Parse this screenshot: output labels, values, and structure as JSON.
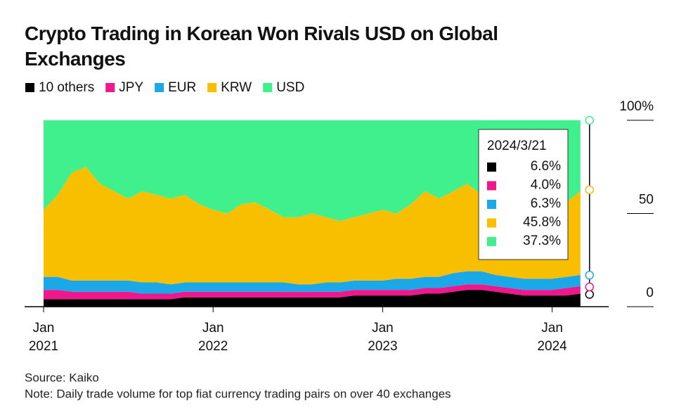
{
  "chart_data": {
    "type": "stacked_area",
    "title": "Crypto Trading in Korean Won Rivals USD on Global Exchanges",
    "source": "Source: Kaiko",
    "note": "Note: Daily trade volume for top fiat currency trading pairs on over 40 exchanges",
    "x": [
      "2021-01",
      "2021-02",
      "2021-03",
      "2021-04",
      "2021-05",
      "2021-06",
      "2021-07",
      "2021-08",
      "2021-09",
      "2021-10",
      "2021-11",
      "2021-12",
      "2022-01",
      "2022-02",
      "2022-03",
      "2022-04",
      "2022-05",
      "2022-06",
      "2022-07",
      "2022-08",
      "2022-09",
      "2022-10",
      "2022-11",
      "2022-12",
      "2023-01",
      "2023-02",
      "2023-03",
      "2023-04",
      "2023-05",
      "2023-06",
      "2023-07",
      "2023-08",
      "2023-09",
      "2023-10",
      "2023-11",
      "2023-12",
      "2024-01",
      "2024-02",
      "2024-03"
    ],
    "series": [
      {
        "name": "10 others",
        "color": "#000000",
        "values": [
          4,
          4,
          4,
          4,
          4,
          4,
          4,
          4,
          4,
          4,
          5,
          5,
          5,
          5,
          5,
          5,
          5,
          5,
          5,
          5,
          5,
          5,
          6,
          6,
          6,
          6,
          6,
          7,
          7,
          8,
          9,
          9,
          8,
          7,
          6,
          6,
          6,
          6,
          7
        ]
      },
      {
        "name": "JPY",
        "color": "#f0168c",
        "values": [
          5,
          5,
          4,
          4,
          4,
          4,
          4,
          3,
          3,
          3,
          3,
          3,
          3,
          3,
          3,
          3,
          3,
          3,
          3,
          3,
          3,
          3,
          3,
          3,
          3,
          3,
          3,
          3,
          3,
          3,
          3,
          3,
          3,
          3,
          3,
          3,
          3,
          4,
          4
        ]
      },
      {
        "name": "EUR",
        "color": "#1ba8e8",
        "values": [
          7,
          7,
          6,
          6,
          6,
          6,
          6,
          6,
          6,
          5,
          5,
          5,
          5,
          5,
          5,
          5,
          5,
          5,
          4,
          4,
          5,
          5,
          5,
          5,
          5,
          6,
          6,
          6,
          6,
          7,
          7,
          7,
          6,
          6,
          6,
          6,
          6,
          6,
          6
        ]
      },
      {
        "name": "KRW",
        "color": "#f8bf00",
        "values": [
          36,
          44,
          58,
          61,
          52,
          48,
          44,
          49,
          47,
          46,
          47,
          42,
          39,
          37,
          42,
          43,
          39,
          35,
          36,
          38,
          35,
          33,
          34,
          36,
          38,
          35,
          40,
          46,
          42,
          44,
          47,
          41,
          45,
          44,
          51,
          49,
          43,
          40,
          45
        ]
      },
      {
        "name": "USD",
        "color": "#40f08c",
        "values": [
          48,
          40,
          28,
          25,
          34,
          38,
          42,
          38,
          40,
          42,
          40,
          45,
          48,
          50,
          45,
          44,
          48,
          52,
          52,
          50,
          52,
          54,
          52,
          50,
          48,
          50,
          45,
          38,
          42,
          38,
          34,
          40,
          38,
          40,
          34,
          36,
          42,
          44,
          38
        ]
      }
    ],
    "xticks": [
      {
        "value": "2021-01",
        "label": [
          "Jan",
          "2021"
        ]
      },
      {
        "value": "2022-01",
        "label": [
          "Jan",
          "2022"
        ]
      },
      {
        "value": "2023-01",
        "label": [
          "Jan",
          "2023"
        ]
      },
      {
        "value": "2024-01",
        "label": [
          "Jan",
          "2024"
        ]
      }
    ],
    "ylim": [
      0,
      100
    ],
    "yticks": [
      0,
      50,
      {
        "value": 100,
        "label": "100%"
      }
    ],
    "tooltip": {
      "date": "2024/3/21",
      "values": [
        6.6,
        4.0,
        6.3,
        45.8,
        37.3
      ],
      "value_labels": [
        "6.6%",
        "4.0%",
        "6.3%",
        "45.8%",
        "37.3%"
      ]
    }
  }
}
